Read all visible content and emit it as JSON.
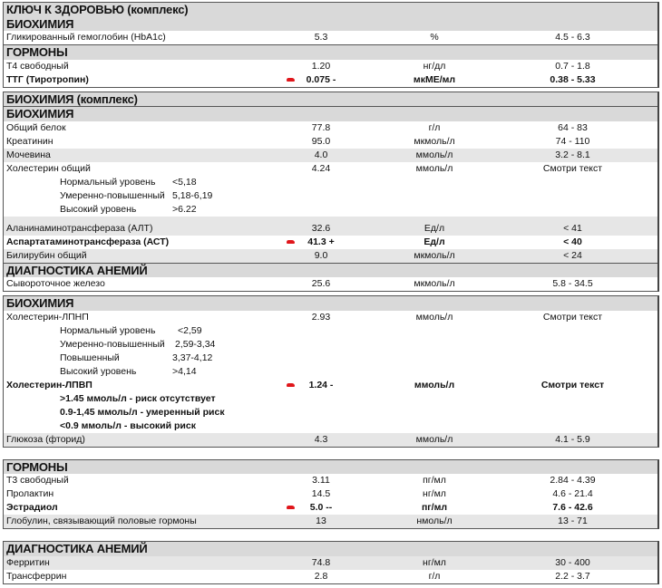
{
  "colors": {
    "header_bg": "#d9d9d9",
    "shade_bg": "#e6e6e6",
    "flag": "#e0161b",
    "border": "#555555"
  },
  "boxes": [
    {
      "rows": [
        {
          "type": "hdr",
          "text": "КЛЮЧ К ЗДОРОВЬЮ (комплекс)"
        },
        {
          "type": "hdr",
          "text": "БИОХИМИЯ"
        },
        {
          "type": "item",
          "name": "Гликированный гемоглобин (HbA1c)",
          "value": "5.3",
          "unit": "%",
          "ref": "4.5 - 6.3"
        },
        {
          "type": "hdr",
          "sep": true,
          "text": "ГОРМОНЫ"
        },
        {
          "type": "item",
          "name": "Т4 свободный",
          "value": "1.20",
          "unit": "нг/дл",
          "ref": "0.7 - 1.8"
        },
        {
          "type": "item",
          "name": "ТТГ (Тиротропин)",
          "value": "0.075 -",
          "unit": "мкМЕ/мл",
          "ref": "0.38 - 5.33",
          "bold": true,
          "flag": true
        }
      ]
    },
    {
      "gap": 4,
      "rows": [
        {
          "type": "hdr",
          "text": "БИОХИМИЯ (комплекс)"
        },
        {
          "type": "hdr",
          "sep": true,
          "text": "БИОХИМИЯ"
        },
        {
          "type": "item",
          "name": "Общий белок",
          "value": "77.8",
          "unit": "г/л",
          "ref": "64 - 83"
        },
        {
          "type": "item",
          "name": "Креатинин",
          "value": "95.0",
          "unit": "мкмоль/л",
          "ref": "74 - 110"
        },
        {
          "type": "item",
          "name": "Мочевина",
          "value": "4.0",
          "unit": "ммоль/л",
          "ref": "3.2 - 8.1",
          "shade": true
        },
        {
          "type": "item",
          "name": "Холестерин общий",
          "value": "4.24",
          "unit": "ммоль/л",
          "ref": "Смотри текст"
        },
        {
          "type": "note",
          "text": "Нормальный уровень",
          "nval": "<5,18"
        },
        {
          "type": "note",
          "text": "Умеренно-повышенный",
          "nval": "5,18-6,19"
        },
        {
          "type": "note",
          "text": "Высокий уровень",
          "nval": ">6.22"
        },
        {
          "type": "spacer"
        },
        {
          "type": "item",
          "name": "Аланинаминотрансфераза (АЛТ)",
          "value": "32.6",
          "unit": "Ед/л",
          "ref": "< 41",
          "shade": true
        },
        {
          "type": "item",
          "name": "Аспартатаминотрансфераза (АСТ)",
          "value": "41.3 +",
          "unit": "Ед/л",
          "ref": "< 40",
          "bold": true,
          "flag": true
        },
        {
          "type": "item",
          "name": "Билирубин общий",
          "value": "9.0",
          "unit": "мкмоль/л",
          "ref": "< 24",
          "shade": true
        },
        {
          "type": "hdr",
          "sep": true,
          "text": "ДИАГНОСТИКА АНЕМИЙ"
        },
        {
          "type": "item",
          "name": "Сывороточное железо",
          "value": "25.6",
          "unit": "мкмоль/л",
          "ref": "5.8 - 34.5"
        }
      ]
    },
    {
      "gap": 4,
      "rows": [
        {
          "type": "hdr",
          "text": "БИОХИМИЯ"
        },
        {
          "type": "item",
          "name": "Холестерин-ЛПНП",
          "value": "2.93",
          "unit": "ммоль/л",
          "ref": "Смотри текст"
        },
        {
          "type": "note",
          "text": "Нормальный уровень",
          "nval": "<2,59",
          "off": 6
        },
        {
          "type": "note",
          "text": "Умеренно-повышенный",
          "nval": "2,59-3,34",
          "off": 3
        },
        {
          "type": "note",
          "text": "Повышенный",
          "nval": "3,37-4,12"
        },
        {
          "type": "note",
          "text": "Высокий уровень",
          "nval": ">4,14"
        },
        {
          "type": "item",
          "name": "Холестерин-ЛПВП",
          "value": "1.24 -",
          "unit": "ммоль/л",
          "ref": "Смотри текст",
          "bold": true,
          "flag": true
        },
        {
          "type": "note",
          "text": ">1.45 ммоль/л - риск отсутствует",
          "bold": true
        },
        {
          "type": "note",
          "text": "0.9-1,45 ммоль/л - умеренный риск",
          "bold": true
        },
        {
          "type": "note",
          "text": "<0.9 ммоль/л - высокий риск",
          "bold": true
        },
        {
          "type": "item",
          "name": "Глюкоза (фторид)",
          "value": "4.3",
          "unit": "ммоль/л",
          "ref": "4.1 - 5.9",
          "shade": true
        }
      ]
    },
    {
      "gap": 13,
      "rows": [
        {
          "type": "hdr",
          "text": "ГОРМОНЫ"
        },
        {
          "type": "item",
          "name": "Т3 свободный",
          "value": "3.11",
          "unit": "пг/мл",
          "ref": "2.84 - 4.39"
        },
        {
          "type": "item",
          "name": "Пролактин",
          "value": "14.5",
          "unit": "нг/мл",
          "ref": "4.6 - 21.4"
        },
        {
          "type": "item",
          "name": "Эстрадиол",
          "value": "5.0 --",
          "unit": "пг/мл",
          "ref": "7.6 - 42.6",
          "bold": true,
          "flag": true
        },
        {
          "type": "item",
          "name": "Глобулин, связывающий половые гормоны",
          "value": "13",
          "unit": "нмоль/л",
          "ref": "13 - 71",
          "shade": true
        }
      ]
    },
    {
      "gap": 13,
      "rows": [
        {
          "type": "hdr",
          "text": "ДИАГНОСТИКА АНЕМИЙ"
        },
        {
          "type": "item",
          "name": "Ферритин",
          "value": "74.8",
          "unit": "нг/мл",
          "ref": "30 - 400",
          "shade": true
        },
        {
          "type": "item",
          "name": "Трансферрин",
          "value": "2.8",
          "unit": "г/л",
          "ref": "2.2 - 3.7"
        }
      ]
    }
  ]
}
